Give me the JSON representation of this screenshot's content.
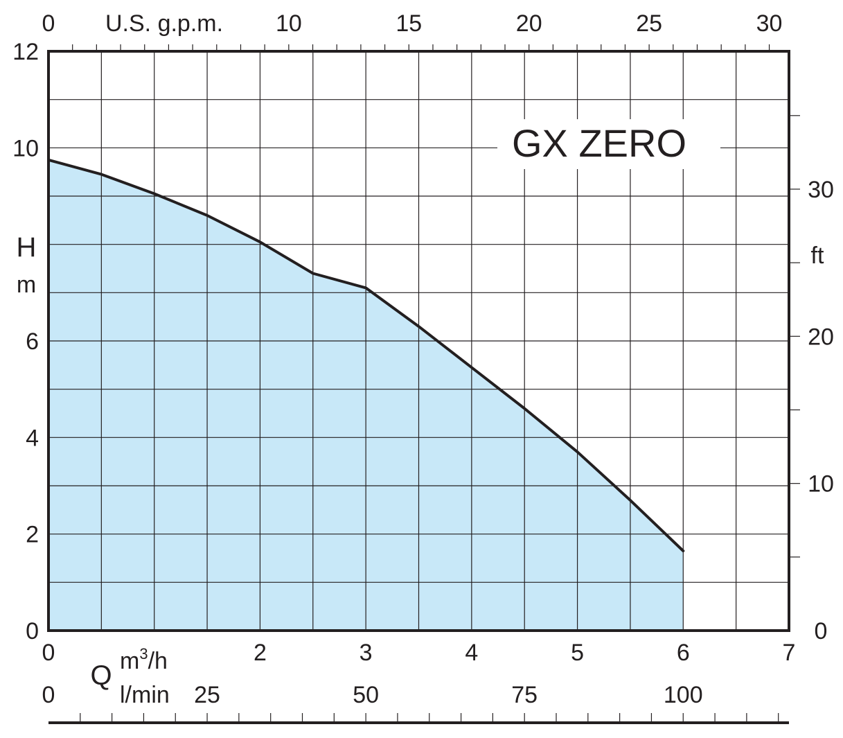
{
  "chart_data": {
    "type": "area",
    "title": "GX ZERO",
    "series": [
      {
        "x": [
          0,
          0.5,
          1,
          1.5,
          2,
          2.5,
          3,
          3.5,
          4,
          4.5,
          5,
          5.5,
          6
        ],
        "values": [
          9.75,
          9.45,
          9.05,
          8.6,
          8.05,
          7.4,
          7.1,
          6.3,
          5.45,
          4.6,
          3.7,
          2.7,
          1.65
        ]
      }
    ],
    "colors": {
      "fill": "#c8e8f8",
      "line": "#231f20",
      "grid": "#231f20"
    },
    "axes": {
      "bottom": {
        "quantity": "Q",
        "unit_top": "m",
        "unit_sup": "3",
        "unit_rest": "/h",
        "range": [
          0,
          7
        ],
        "ticks": [
          "0",
          "2",
          "3",
          "4",
          "5",
          "6",
          "7"
        ]
      },
      "lpm": {
        "unit": "l/min",
        "range": [
          0,
          116.67
        ],
        "ticks": [
          "0",
          "25",
          "50",
          "75",
          "100"
        ]
      },
      "top": {
        "unit": "U.S. g.p.m.",
        "range": [
          0,
          30.82
        ],
        "ticks": [
          "0",
          "10",
          "15",
          "20",
          "25",
          "30"
        ]
      },
      "left": {
        "label": "H",
        "unit": "m",
        "range": [
          0,
          12
        ],
        "ticks": [
          "0",
          "2",
          "4",
          "6",
          "10",
          "12"
        ]
      },
      "right": {
        "unit": "ft",
        "range": [
          0,
          39.37
        ],
        "ticks": [
          "0",
          "10",
          "20",
          "30"
        ]
      }
    }
  }
}
